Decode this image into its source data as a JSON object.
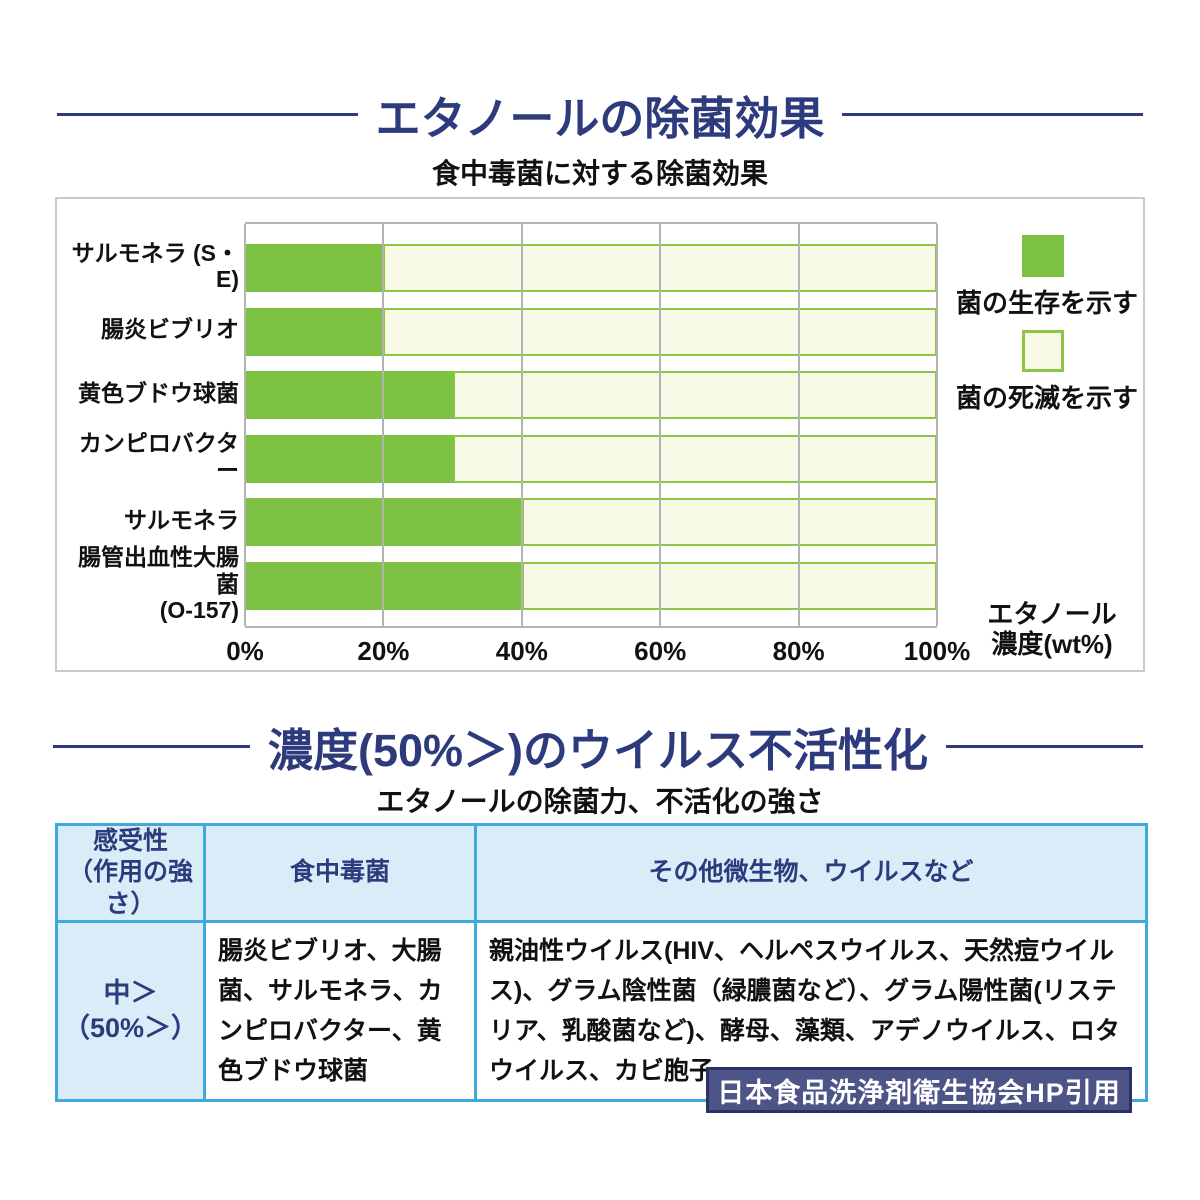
{
  "section1": {
    "title": "エタノールの除菌効果",
    "subtitle": "食中毒菌に対する除菌効果"
  },
  "chart_data": {
    "type": "bar",
    "orientation": "horizontal",
    "title": "食中毒菌に対する除菌効果",
    "categories": [
      "サルモネラ (S・E)",
      "腸炎ビブリオ",
      "黄色ブドウ球菌",
      "カンピロバクター",
      "サルモネラ",
      "腸管出血性大腸菌\n(O-157)"
    ],
    "series": [
      {
        "name": "菌の生存を示す",
        "values": [
          20,
          20,
          30,
          30,
          40,
          40
        ]
      },
      {
        "name": "菌の死滅を示す",
        "values": [
          80,
          80,
          70,
          70,
          60,
          60
        ]
      }
    ],
    "x_ticks": [
      "0%",
      "20%",
      "40%",
      "60%",
      "80%",
      "100%"
    ],
    "xlim": [
      0,
      100
    ],
    "grid": true,
    "legend_position": "right",
    "legend": {
      "survive_label": "菌の生存を示す",
      "dead_label": "菌の死滅を示す"
    },
    "axis_unit": "エタノール\n濃度(wt%)",
    "colors": {
      "survive_fill": "#7dc242",
      "dead_fill": "#f7f9e6",
      "dead_border": "#8cc642",
      "gridline": "#b3b3b3"
    }
  },
  "section2": {
    "title": "濃度(50%＞)のウイルス不活性化",
    "subtitle": "エタノールの除菌力、不活化の強さ"
  },
  "table": {
    "headers": {
      "sensitivity": "感受性\n（作用の強さ）",
      "food_bacteria": "食中毒菌",
      "others": "その他微生物、ウイルスなど"
    },
    "rows": [
      {
        "sensitivity": "中＞\n（50%＞）",
        "food_bacteria": "腸炎ビブリオ、大腸菌、サルモネラ、カンピロバクター、黄色ブドウ球菌",
        "others": "親油性ウイルス(HIV、ヘルペスウイルス、天然痘ウイルス)、グラム陰性菌（緑膿菌など）、グラム陽性菌(リステリア、乳酸菌など)、酵母、藻類、アデノウイルス、ロタウイルス、カビ胞子"
      }
    ]
  },
  "footer": {
    "source": "日本食品洗浄剤衛生協会HP引用"
  },
  "theme_colors": {
    "title_navy": "#2d3a7c",
    "table_border_blue": "#3fa9dc",
    "table_header_bg": "#d9edf8",
    "source_box_bg": "#4d5488",
    "source_box_border": "#2a3166"
  }
}
